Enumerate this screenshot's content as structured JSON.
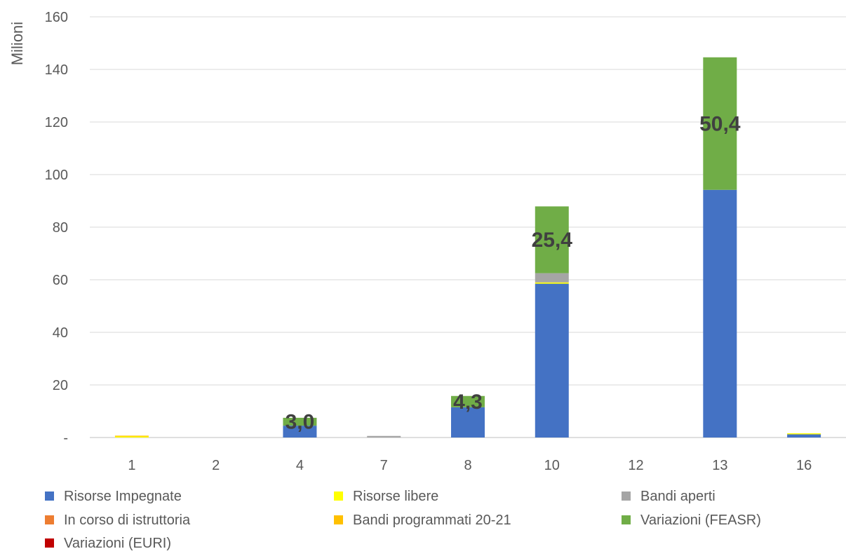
{
  "chart_data": {
    "type": "bar",
    "stacked": true,
    "ylabel": "Milioni",
    "xlabel": "",
    "ylim": [
      0,
      160
    ],
    "yticks": [
      0,
      20,
      40,
      60,
      80,
      100,
      120,
      140,
      160
    ],
    "ytick_labels": [
      "-",
      "20",
      "40",
      "60",
      "80",
      "100",
      "120",
      "140",
      "160"
    ],
    "grid": true,
    "legend_position": "bottom",
    "categories": [
      "1",
      "2",
      "4",
      "7",
      "8",
      "10",
      "12",
      "13",
      "16"
    ],
    "series": [
      {
        "name": "Risorse Impegnate",
        "color": "#4472C4",
        "values": [
          0,
          0,
          4.5,
          0,
          11.5,
          58.5,
          0,
          94.2,
          1.2
        ]
      },
      {
        "name": "Risorse libere",
        "color": "#FFFF00",
        "values": [
          0.4,
          0,
          0,
          0,
          0,
          0.5,
          0,
          0,
          0.4
        ]
      },
      {
        "name": "Bandi aperti",
        "color": "#A5A5A5",
        "values": [
          0,
          0,
          0,
          0.6,
          0,
          3.5,
          0,
          0,
          0
        ]
      },
      {
        "name": "In corso di istruttoria",
        "color": "#ED7D31",
        "values": [
          0,
          0,
          0,
          0,
          0,
          0,
          0,
          0,
          0
        ]
      },
      {
        "name": "Bandi programmati 20-21",
        "color": "#FFC000",
        "values": [
          0.3,
          0,
          0,
          0,
          0,
          0,
          0,
          0,
          0
        ]
      },
      {
        "name": "Variazioni  (FEASR)",
        "color": "#70AD47",
        "values": [
          0,
          0,
          3.0,
          0,
          4.3,
          25.4,
          0,
          50.4,
          0
        ]
      },
      {
        "name": "Variazioni (EURI)",
        "color": "#C00000",
        "values": [
          0,
          0,
          0,
          0,
          0,
          0,
          0,
          0,
          0
        ]
      }
    ],
    "data_labels": [
      {
        "category": "4",
        "series": "Variazioni  (FEASR)",
        "text": "3,0"
      },
      {
        "category": "8",
        "series": "Variazioni  (FEASR)",
        "text": "4,3"
      },
      {
        "category": "10",
        "series": "Variazioni  (FEASR)",
        "text": "25,4"
      },
      {
        "category": "13",
        "series": "Variazioni  (FEASR)",
        "text": "50,4"
      }
    ]
  }
}
